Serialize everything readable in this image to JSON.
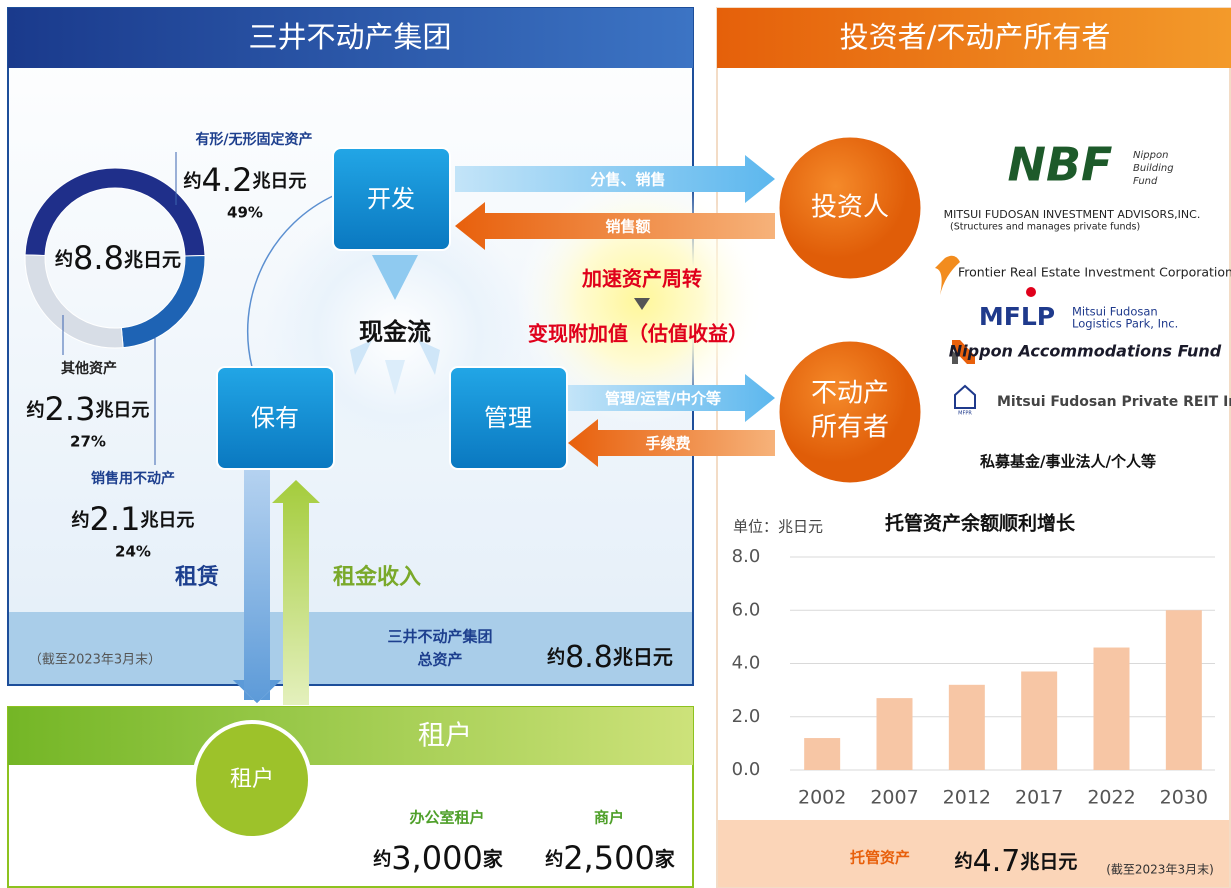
{
  "group": {
    "title": "三井不动产集团",
    "donut": {
      "center": {
        "prefix": "约",
        "number": "8.8",
        "unit": "兆日元"
      },
      "segments": [
        {
          "name": "有形/无形固定资产",
          "amount": {
            "prefix": "约",
            "number": "4.2",
            "unit": "兆日元"
          },
          "value": 49,
          "value_label": "49%",
          "color": "#1f2f8a"
        },
        {
          "name": "销售用不动产",
          "amount": {
            "prefix": "约",
            "number": "2.1",
            "unit": "兆日元"
          },
          "value": 24,
          "value_label": "24%",
          "color": "#1e63b4"
        },
        {
          "name": "其他资产",
          "amount": {
            "prefix": "约",
            "number": "2.3",
            "unit": "兆日元"
          },
          "value": 27,
          "value_label": "27%",
          "color": "#d7dde6"
        }
      ]
    },
    "flow": {
      "develop": "开发",
      "hold": "保有",
      "manage": "管理",
      "cash": "现金流"
    },
    "lease": "租赁",
    "rent": "租金收入",
    "footer": {
      "note": "（截至2023年3月末）",
      "total_label": [
        "三井不动产集团",
        "总资产"
      ],
      "total": {
        "prefix": "约",
        "number": "8.8",
        "unit": "兆日元"
      }
    }
  },
  "center_notes": {
    "accelerate": "加速资产周转",
    "realize": "变现附加值（估值收益）"
  },
  "investors": {
    "title": "投资者/不动产所有者",
    "investor": "投资人",
    "owner": [
      "不动产",
      "所有者"
    ],
    "arrows": {
      "sale": "分售、销售",
      "proceeds": "销售额",
      "manage": "管理/运营/中介等",
      "fee": "手续费"
    },
    "logos": {
      "nbf": "NBF",
      "nbf_sub": [
        "Nippon",
        "Building",
        "Fund"
      ],
      "mfia": "MITSUI FUDOSAN INVESTMENT ADVISORS,INC.",
      "mfia_sub": "(Structures and manages private funds)",
      "frontier": "Frontier Real Estate Investment Corporation",
      "mflp": "MFLP",
      "mflp_sub": [
        "Mitsui Fudosan",
        "Logistics Park, Inc."
      ],
      "naf": "Nippon Accommodations Fund",
      "mfpr": "Mitsui Fudosan Private REIT Inc.",
      "mfpr_icon": "MFPR"
    },
    "others": "私募基金/事业法人/个人等",
    "footer": {
      "label": "托管资产",
      "total": {
        "prefix": "约",
        "number": "4.7",
        "unit": "兆日元"
      },
      "note": "(截至2023年3月末)"
    }
  },
  "chart_data": {
    "type": "bar",
    "title": "托管资产余额顺利增长",
    "y_label": "单位：兆日元",
    "categories": [
      "2002",
      "2007",
      "2012",
      "2017",
      "2022",
      "2030"
    ],
    "values": [
      1.2,
      2.7,
      3.2,
      3.7,
      4.6,
      6.0
    ],
    "color": "#f7c6a5",
    "ylim": [
      0,
      8
    ],
    "yticks": [
      {
        "value": 0,
        "label": "0.0"
      },
      {
        "value": 2,
        "label": "2.0"
      },
      {
        "value": 4,
        "label": "4.0"
      },
      {
        "value": 6,
        "label": "6.0"
      },
      {
        "value": 8,
        "label": "8.0"
      }
    ],
    "grid": true
  },
  "tenants": {
    "title": "租户",
    "circle": "租户",
    "office": {
      "label": "办公室租户",
      "count": {
        "prefix": "约",
        "number": "3,000",
        "unit": "家"
      }
    },
    "retail": {
      "label": "商户",
      "count": {
        "prefix": "约",
        "number": "2,500",
        "unit": "家"
      }
    }
  }
}
